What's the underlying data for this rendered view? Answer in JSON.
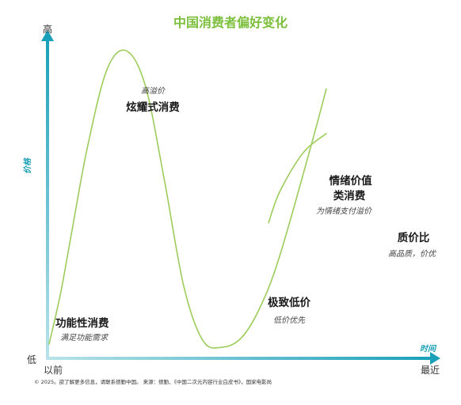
{
  "colors": {
    "curve": "#9ccc5a",
    "axis_start": "#b9e3ea",
    "axis_end": "#1aa0b8",
    "title": "#7bbf3b"
  },
  "chart_data": {
    "type": "line",
    "title": "中国消费者偏好变化",
    "xlabel": "时间",
    "ylabel": "价格",
    "x_axis_ends": {
      "start": "以前",
      "end": "最近"
    },
    "y_axis_ends": {
      "low": "低",
      "high": "高"
    },
    "stages": [
      {
        "label": "功能性消费",
        "sub": "满足功能需求"
      },
      {
        "label": "炫耀式消费",
        "sub": "高溢价"
      },
      {
        "label": "极致低价",
        "sub": "低价优先"
      },
      {
        "label": "情绪价值类消费",
        "label_lines": [
          "情绪价值",
          "类消费"
        ],
        "sub": "为情绪支付溢价"
      },
      {
        "label": "质价比",
        "sub": "高品质，价优"
      }
    ],
    "series": [
      {
        "values": [
          [
            0,
            4
          ],
          [
            3,
            20
          ],
          [
            6,
            40
          ],
          [
            10,
            66
          ],
          [
            15,
            90
          ],
          [
            20,
            96
          ],
          [
            25,
            85
          ],
          [
            30,
            55
          ],
          [
            35,
            22
          ],
          [
            40,
            5
          ],
          [
            45,
            3
          ],
          [
            50,
            6
          ],
          [
            55,
            16
          ],
          [
            60,
            32
          ],
          [
            68,
            66
          ],
          [
            72,
            84
          ]
        ]
      },
      {
        "values": [
          [
            57,
            42
          ],
          [
            60,
            52
          ],
          [
            66,
            64
          ],
          [
            72,
            70
          ]
        ]
      }
    ]
  },
  "footer": "© 2025。欲了解更多信息，请联系德勤中国。      来源：德勤、《中国二次元内容行业白皮书》，国家电影局"
}
